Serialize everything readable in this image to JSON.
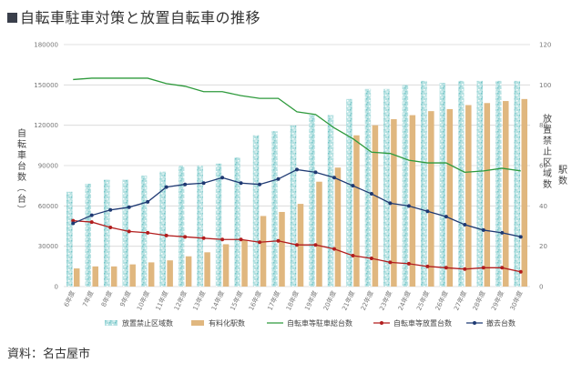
{
  "title": "自転車駐車対策と放置自転車の推移",
  "source": "資料：名古屋市",
  "colors": {
    "bar_prohibited": "#8fd1d3",
    "bar_paid": "#e0b77f",
    "line_parking": "#2e9a3c",
    "line_abandoned": "#b21e1e",
    "line_removed": "#1f3a73",
    "grid": "#d6d6d6"
  },
  "chart_data": {
    "type": "bar+line",
    "categories": [
      "6年度",
      "7年度",
      "8年度",
      "9年度",
      "10年度",
      "11年度",
      "12年度",
      "13年度",
      "14年度",
      "15年度",
      "16年度",
      "17年度",
      "18年度",
      "19年度",
      "20年度",
      "21年度",
      "22年度",
      "23年度",
      "24年度",
      "25年度",
      "26年度",
      "27年度",
      "28年度",
      "29年度",
      "30年度"
    ],
    "y_left": {
      "title": "自転車台数（台）",
      "min": 0,
      "max": 180000,
      "ticks": [
        0,
        30000,
        60000,
        90000,
        120000,
        150000,
        180000
      ]
    },
    "y_right": {
      "title_lines": [
        "放置禁止区域数",
        "駅数"
      ],
      "min": 0,
      "max": 120,
      "ticks": [
        0,
        20,
        40,
        60,
        80,
        100,
        120
      ]
    },
    "series": [
      {
        "name": "放置禁止区域数",
        "kind": "bar",
        "axis": "right",
        "values": [
          47,
          51,
          53,
          53,
          55,
          57,
          60,
          60,
          61,
          64,
          75,
          77,
          80,
          85,
          85,
          93,
          98,
          98,
          100,
          102,
          101,
          102,
          102,
          102,
          102
        ]
      },
      {
        "name": "有料化駅数",
        "kind": "bar",
        "axis": "right",
        "values": [
          9,
          10,
          10,
          11,
          12,
          13,
          15,
          17,
          21,
          23,
          35,
          37,
          41,
          52,
          59,
          75,
          80,
          83,
          85,
          87,
          88,
          90,
          91,
          92,
          93
        ]
      },
      {
        "name": "自転車等駐車総台数",
        "kind": "line",
        "axis": "left",
        "values": [
          154000,
          155000,
          155000,
          155000,
          155000,
          151000,
          149000,
          145000,
          145000,
          142000,
          140000,
          140000,
          130000,
          128000,
          118000,
          110000,
          100000,
          99000,
          94000,
          92000,
          92000,
          85000,
          86000,
          88000,
          86000
        ]
      },
      {
        "name": "自転車等放置台数",
        "kind": "line",
        "axis": "left",
        "values": [
          49000,
          48000,
          44000,
          41000,
          40000,
          38000,
          37000,
          36000,
          35000,
          35000,
          33000,
          34000,
          31000,
          31000,
          28000,
          23000,
          21000,
          18000,
          17000,
          15000,
          14000,
          13000,
          14000,
          14000,
          11000
        ]
      },
      {
        "name": "撤去台数",
        "kind": "line",
        "axis": "left",
        "values": [
          47000,
          53000,
          57000,
          59000,
          63000,
          74000,
          76000,
          77000,
          81000,
          77000,
          76000,
          80000,
          87000,
          85000,
          81000,
          75000,
          69000,
          62000,
          60000,
          56000,
          52000,
          46000,
          42000,
          40000,
          37000
        ]
      }
    ]
  }
}
